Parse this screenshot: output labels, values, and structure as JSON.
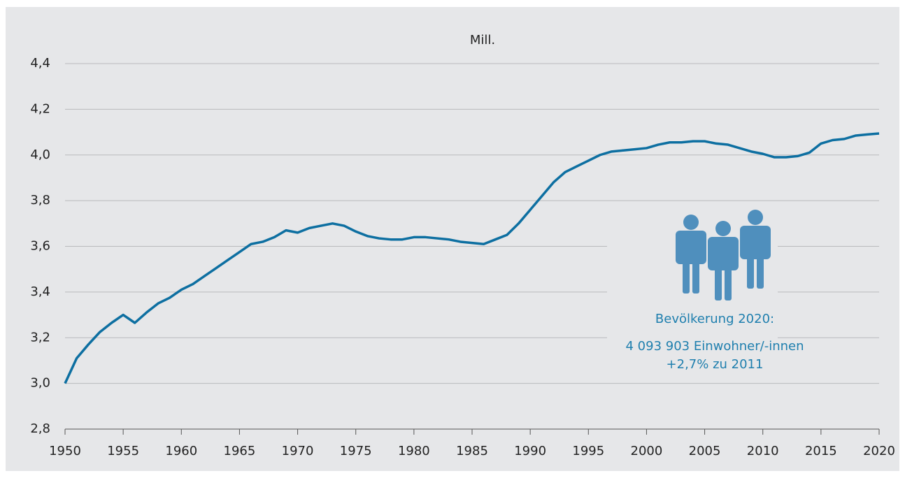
{
  "chart_data": {
    "type": "line",
    "y_label": "Mill.",
    "annotations": [
      "Bevölkerung 2020:",
      "4 093 903 Einwohner/-innen",
      "+2,7% zu 2011"
    ],
    "x": [
      1950,
      1951,
      1952,
      1953,
      1954,
      1955,
      1956,
      1957,
      1958,
      1959,
      1960,
      1961,
      1962,
      1963,
      1964,
      1965,
      1966,
      1967,
      1968,
      1969,
      1970,
      1971,
      1972,
      1973,
      1974,
      1975,
      1976,
      1977,
      1978,
      1979,
      1980,
      1981,
      1982,
      1983,
      1984,
      1985,
      1986,
      1987,
      1988,
      1989,
      1990,
      1991,
      1992,
      1993,
      1994,
      1995,
      1996,
      1997,
      1998,
      1999,
      2000,
      2001,
      2002,
      2003,
      2004,
      2005,
      2006,
      2007,
      2008,
      2009,
      2010,
      2011,
      2012,
      2013,
      2014,
      2015,
      2016,
      2017,
      2018,
      2019,
      2020
    ],
    "series": [
      {
        "name": "Bevölkerung",
        "color": "#0d6fa1",
        "values": [
          3.0,
          3.11,
          3.17,
          3.225,
          3.265,
          3.3,
          3.265,
          3.31,
          3.35,
          3.375,
          3.41,
          3.435,
          3.47,
          3.505,
          3.54,
          3.575,
          3.61,
          3.62,
          3.64,
          3.67,
          3.66,
          3.68,
          3.69,
          3.7,
          3.69,
          3.665,
          3.645,
          3.635,
          3.63,
          3.63,
          3.64,
          3.64,
          3.635,
          3.63,
          3.62,
          3.615,
          3.61,
          3.63,
          3.65,
          3.7,
          3.76,
          3.82,
          3.88,
          3.925,
          3.95,
          3.975,
          4.0,
          4.015,
          4.02,
          4.025,
          4.03,
          4.045,
          4.055,
          4.055,
          4.06,
          4.06,
          4.05,
          4.045,
          4.03,
          4.015,
          4.005,
          3.99,
          3.99,
          3.995,
          4.01,
          4.05,
          4.065,
          4.07,
          4.085,
          4.09,
          4.094
        ]
      }
    ],
    "xlim": [
      1950,
      2020
    ],
    "xticks": [
      1950,
      1955,
      1960,
      1965,
      1970,
      1975,
      1980,
      1985,
      1990,
      1995,
      2000,
      2005,
      2010,
      2015,
      2020
    ],
    "ylim": [
      2.8,
      4.4
    ],
    "yticks": [
      {
        "value": 2.8,
        "label": "2,8"
      },
      {
        "value": 3.0,
        "label": "3,0"
      },
      {
        "value": 3.2,
        "label": "3,2"
      },
      {
        "value": 3.4,
        "label": "3,4"
      },
      {
        "value": 3.6,
        "label": "3,6"
      },
      {
        "value": 3.8,
        "label": "3,8"
      },
      {
        "value": 4.0,
        "label": "4,0"
      },
      {
        "value": 4.2,
        "label": "4,2"
      },
      {
        "value": 4.4,
        "label": "4,4"
      }
    ],
    "grid": true
  }
}
